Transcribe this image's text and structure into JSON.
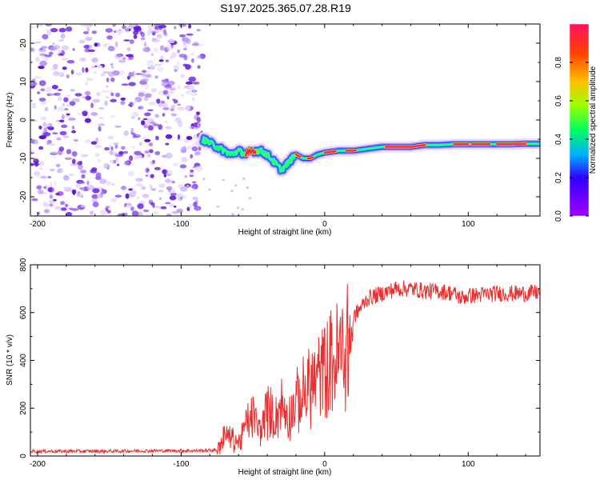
{
  "title": "S197.2025.365.07.28.R19",
  "colors": {
    "speckle": "#7a2df0",
    "trace_core": "#ff2050",
    "snr_line": "#e83030",
    "colorbar": [
      "#a000ff",
      "#3000ff",
      "#00b0ff",
      "#00ff60",
      "#a0ff00",
      "#ffc000",
      "#ff4000",
      "#ff1060"
    ]
  },
  "chart_data": [
    {
      "type": "heatmap",
      "name": "spectrogram",
      "xlabel": "Height of straight line (km)",
      "ylabel": "Frequency (Hz)",
      "xlim": [
        -205,
        150
      ],
      "ylim": [
        -25,
        25
      ],
      "x_ticks": [
        "-200",
        "-100",
        "0",
        "100"
      ],
      "x_tick_values": [
        -200,
        -100,
        0,
        100
      ],
      "y_ticks": [
        "20",
        "10",
        "0",
        "-10",
        "-20"
      ],
      "y_tick_values": [
        20,
        10,
        0,
        -10,
        -20
      ],
      "noise_region_x": [
        -205,
        -85
      ],
      "trace": {
        "x": [
          -85,
          -80,
          -75,
          -70,
          -65,
          -60,
          -55,
          -50,
          -45,
          -40,
          -35,
          -30,
          -25,
          -20,
          -15,
          -10,
          -5,
          0,
          10,
          20,
          30,
          40,
          50,
          60,
          70,
          80,
          90,
          100,
          110,
          120,
          130,
          140,
          150
        ],
        "freq": [
          -5,
          -6,
          -7,
          -8,
          -9,
          -8,
          -9,
          -8,
          -8,
          -9,
          -11,
          -13,
          -11,
          -9,
          -10,
          -10,
          -9,
          -8.5,
          -8,
          -8,
          -7.5,
          -7,
          -7,
          -7,
          -6.5,
          -6.5,
          -6.3,
          -6.3,
          -6.3,
          -6.3,
          -6.3,
          -6.2,
          -6.2
        ]
      }
    },
    {
      "type": "colorbar",
      "name": "amplitude-colorbar",
      "label": "Normalized spectral amplitude",
      "ylim": [
        0,
        1
      ],
      "ticks": [
        "0.0",
        "0.2",
        "0.4",
        "0.6",
        "0.8"
      ],
      "tick_values": [
        0,
        0.2,
        0.4,
        0.6,
        0.8
      ]
    },
    {
      "type": "line",
      "name": "snr",
      "xlabel": "Height of straight line (km)",
      "ylabel": "SNR (10 * v/v)",
      "xlim": [
        -205,
        150
      ],
      "ylim": [
        0,
        800
      ],
      "x_ticks": [
        "-200",
        "-100",
        "0",
        "100"
      ],
      "x_tick_values": [
        -200,
        -100,
        0,
        100
      ],
      "y_ticks": [
        "800",
        "600",
        "400",
        "200",
        "0"
      ],
      "y_tick_values": [
        800,
        600,
        400,
        200,
        0
      ],
      "x": [
        -205,
        -180,
        -150,
        -120,
        -90,
        -75,
        -70,
        -65,
        -60,
        -55,
        -50,
        -45,
        -40,
        -35,
        -30,
        -25,
        -20,
        -15,
        -10,
        -5,
        0,
        5,
        10,
        15,
        20,
        25,
        30,
        40,
        50,
        60,
        70,
        80,
        90,
        95,
        100,
        110,
        120,
        130,
        140,
        150
      ],
      "values": [
        20,
        20,
        20,
        22,
        22,
        25,
        100,
        90,
        60,
        150,
        200,
        120,
        230,
        180,
        250,
        190,
        260,
        300,
        350,
        380,
        420,
        460,
        490,
        540,
        580,
        620,
        660,
        680,
        700,
        700,
        690,
        690,
        680,
        660,
        670,
        675,
        680,
        680,
        680,
        685
      ]
    }
  ]
}
